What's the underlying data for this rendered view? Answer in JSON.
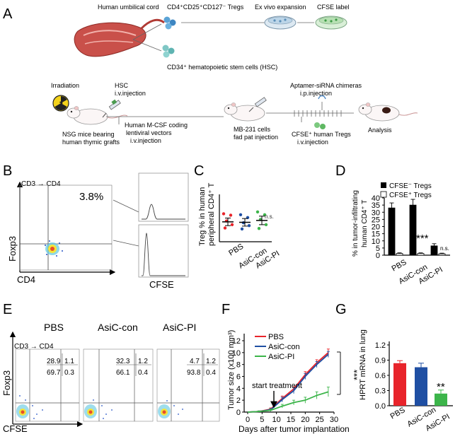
{
  "panel_letters": [
    "A",
    "B",
    "C",
    "D",
    "E",
    "F",
    "G"
  ],
  "panel_a": {
    "cord_label": "Human umbilical cord",
    "tregs_label": "CD4⁺CD25⁺CD127⁻ Tregs",
    "expansion_label": "Ex vivo expansion",
    "cfse_label": "CFSE label",
    "hsc_label": "CD34⁺ hematopoietic stem cells (HSC)",
    "irradiation": "Irradiation",
    "hsc_inj_1": "HSC",
    "hsc_inj_2": "i.v.injection",
    "nsg_1": "NSG mice bearing",
    "nsg_2": "human thymic grafts",
    "mcsf_1": "Human M-CSF coding",
    "mcsf_2": "lentiviral vectors",
    "mcsf_3": "i.v.injection",
    "mb231_1": "MB-231 cells",
    "mb231_2": "fad pat injection",
    "aptamer_1": "Aptamer-siRNA chimeras",
    "aptamer_2": "i.p.injection",
    "cfse_tregs_1": "CFSE⁺ human Tregs",
    "cfse_tregs_2": "i.v.injection",
    "analysis": "Analysis"
  },
  "panel_b": {
    "gate": "CD3 → CD4",
    "percent": "3.8%",
    "y_label": "Foxp3",
    "x_label": "CD4",
    "hist_label": "CFSE"
  },
  "panel_c": {
    "y_label_1": "Treg % in human",
    "y_label_2": "peripheral CD4⁺ T",
    "categories": [
      "PBS",
      "AsiC-con",
      "AsiC-PI"
    ],
    "significance": "n.s."
  },
  "panel_d": {
    "y_label_1": "% in tumor-infiltrating",
    "y_label_2": "human CD4⁺ T",
    "legend_neg": "CFSE⁻ Tregs",
    "legend_pos": "CFSE⁺ Tregs",
    "categories": [
      "PBS",
      "AsiC-con",
      "AsiC-PI"
    ],
    "yticks": [
      "0",
      "5",
      "10",
      "15",
      "20",
      "25",
      "30",
      "35",
      "40"
    ],
    "sig_strong": "***",
    "sig_ns": "n.s."
  },
  "panel_e": {
    "titles": [
      "PBS",
      "AsiC-con",
      "AsiC-PI"
    ],
    "gate": "CD3 → CD4",
    "quadrants": [
      {
        "ul": "28.9",
        "ur": "1.1",
        "ll": "69.7",
        "lr": "0.3"
      },
      {
        "ul": "32.3",
        "ur": "1.2",
        "ll": "66.1",
        "lr": "0.4"
      },
      {
        "ul": "4.7",
        "ur": "1.2",
        "ll": "93.8",
        "lr": "0.4"
      }
    ],
    "y_label": "Foxp3",
    "x_label": "CFSE"
  },
  "panel_f": {
    "y_label": "Tumor size (x100 mm³)",
    "x_label": "Days after tumor implantation",
    "annotation": "start treatment",
    "significance": "***",
    "legend": [
      "PBS",
      "AsiC-con",
      "AsiC-PI"
    ],
    "xticks": [
      "0",
      "5",
      "10",
      "15",
      "20",
      "25",
      "30"
    ],
    "yticks": [
      "0",
      "2",
      "4",
      "6",
      "8",
      "10",
      "12"
    ]
  },
  "panel_g": {
    "y_label": "HPRT mRNA in lung",
    "categories": [
      "PBS",
      "AsiC-con",
      "AsiC-PI"
    ],
    "yticks": [
      "0.0",
      "0.3",
      "0.6",
      "0.9",
      "1.2"
    ],
    "significance": "**"
  },
  "colors": {
    "pbs": "#e8242b",
    "con": "#1f4fa3",
    "pi": "#3cb54a"
  },
  "chart_data": [
    {
      "type": "scatter",
      "title": "",
      "ylabel": "Treg % in human peripheral CD4⁺ T",
      "categories": [
        "PBS",
        "AsiC-con",
        "AsiC-PI"
      ],
      "mean": [
        4.2,
        4.1,
        4.5
      ],
      "sem": [
        0.8,
        0.8,
        0.9
      ],
      "points": [
        [
          5.9,
          5.6,
          4.4,
          3.6,
          2.9
        ],
        [
          5.7,
          5.1,
          4.0,
          3.4,
          2.7
        ],
        [
          6.3,
          5.7,
          4.7,
          3.6,
          2.8
        ]
      ],
      "significance": "n.s."
    },
    {
      "type": "bar",
      "title": "",
      "ylabel": "% in tumor-infiltrating human CD4⁺ T",
      "categories": [
        "PBS",
        "AsiC-con",
        "AsiC-PI"
      ],
      "ylim": [
        0,
        40
      ],
      "series": [
        {
          "name": "CFSE⁻ Tregs",
          "values": [
            33,
            35,
            6.5
          ],
          "err": [
            3.5,
            4,
            1.5
          ]
        },
        {
          "name": "CFSE⁺ Tregs",
          "values": [
            1.2,
            1.2,
            1.0
          ],
          "err": [
            0.4,
            0.4,
            0.4
          ]
        }
      ]
    },
    {
      "type": "line",
      "title": "",
      "xlabel": "Days after tumor implantation",
      "ylabel": "Tumor size (x100 mm³)",
      "x": [
        0,
        4,
        8,
        12,
        16,
        20,
        24,
        28
      ],
      "xlim": [
        0,
        30
      ],
      "ylim": [
        0,
        12
      ],
      "series": [
        {
          "name": "PBS",
          "values": [
            0,
            0.1,
            0.5,
            2.3,
            3.9,
            6.3,
            8.3,
            10.0
          ],
          "err": [
            0,
            0.1,
            0.2,
            0.4,
            0.5,
            0.5,
            0.5,
            0.6
          ]
        },
        {
          "name": "AsiC-con",
          "values": [
            0,
            0.1,
            0.4,
            2.1,
            3.6,
            6.0,
            8.0,
            9.7
          ],
          "err": [
            0,
            0.1,
            0.2,
            0.4,
            0.5,
            0.5,
            0.5,
            0.5
          ]
        },
        {
          "name": "AsiC-PI",
          "values": [
            0,
            0.1,
            0.3,
            1.0,
            1.6,
            2.0,
            2.8,
            3.4
          ],
          "err": [
            0,
            0.1,
            0.2,
            0.3,
            0.4,
            0.5,
            0.6,
            0.8
          ]
        }
      ],
      "annotation": "start treatment at day 10"
    },
    {
      "type": "bar",
      "title": "",
      "ylabel": "HPRT mRNA in lung",
      "categories": [
        "PBS",
        "AsiC-con",
        "AsiC-PI"
      ],
      "ylim": [
        0,
        1.2
      ],
      "values": [
        0.84,
        0.76,
        0.24
      ],
      "err": [
        0.05,
        0.08,
        0.07
      ]
    }
  ]
}
